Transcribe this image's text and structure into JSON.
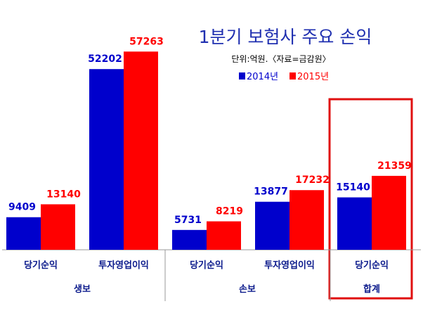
{
  "chart_data": {
    "type": "bar",
    "title": "1분기 보험사 주요 손익",
    "subtitle": "단위:억원.〈자료=금감원〉",
    "categories": [
      "당기순익",
      "투자영업이익",
      "당기순익",
      "투자영업이익",
      "당기순익"
    ],
    "groups": [
      {
        "label": "생보",
        "categories": [
          0,
          1
        ]
      },
      {
        "label": "손보",
        "categories": [
          2,
          3
        ]
      },
      {
        "label": "합계",
        "categories": [
          4
        ],
        "highlighted": true
      }
    ],
    "series": [
      {
        "name": "2014년",
        "color": "#0000cc",
        "values": [
          9409,
          52202,
          5731,
          13877,
          15140
        ]
      },
      {
        "name": "2015년",
        "color": "#ff0000",
        "values": [
          13140,
          57263,
          8219,
          17232,
          21359
        ]
      }
    ],
    "ylim": [
      0,
      62000
    ],
    "legend_position": "top-right",
    "grid": false,
    "highlight_color": "#e01010"
  }
}
